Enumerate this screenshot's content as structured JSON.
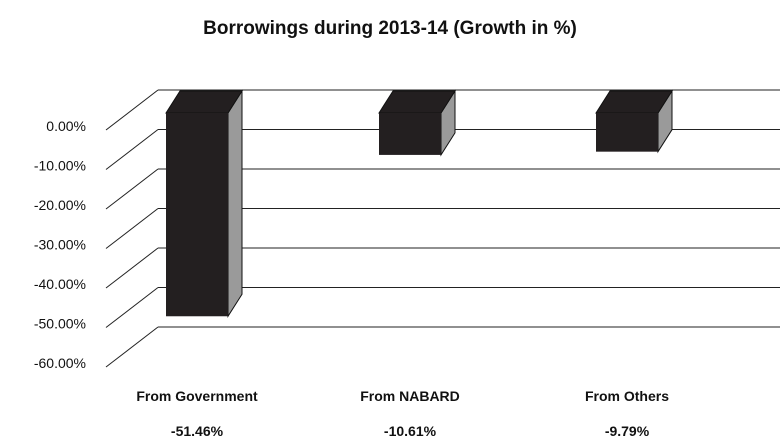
{
  "chart_data": {
    "type": "bar",
    "title": "Borrowings during 2013-14 (Growth in %)",
    "categories": [
      "From Government",
      "From NABARD",
      "From Others"
    ],
    "values": [
      -51.46,
      -10.61,
      -9.79
    ],
    "data_labels": [
      "-51.46%",
      "-10.61%",
      "-9.79%"
    ],
    "y_ticks": [
      "0.00%",
      "-10.00%",
      "-20.00%",
      "-30.00%",
      "-40.00%",
      "-50.00%",
      "-60.00%"
    ],
    "ylim": [
      -60,
      0
    ],
    "grid": true,
    "legend": "none",
    "colors": {
      "bar_front": "#231f20",
      "bar_side": "#9a9a9a",
      "bar_top": "#231f20",
      "grid": "#222222"
    }
  }
}
